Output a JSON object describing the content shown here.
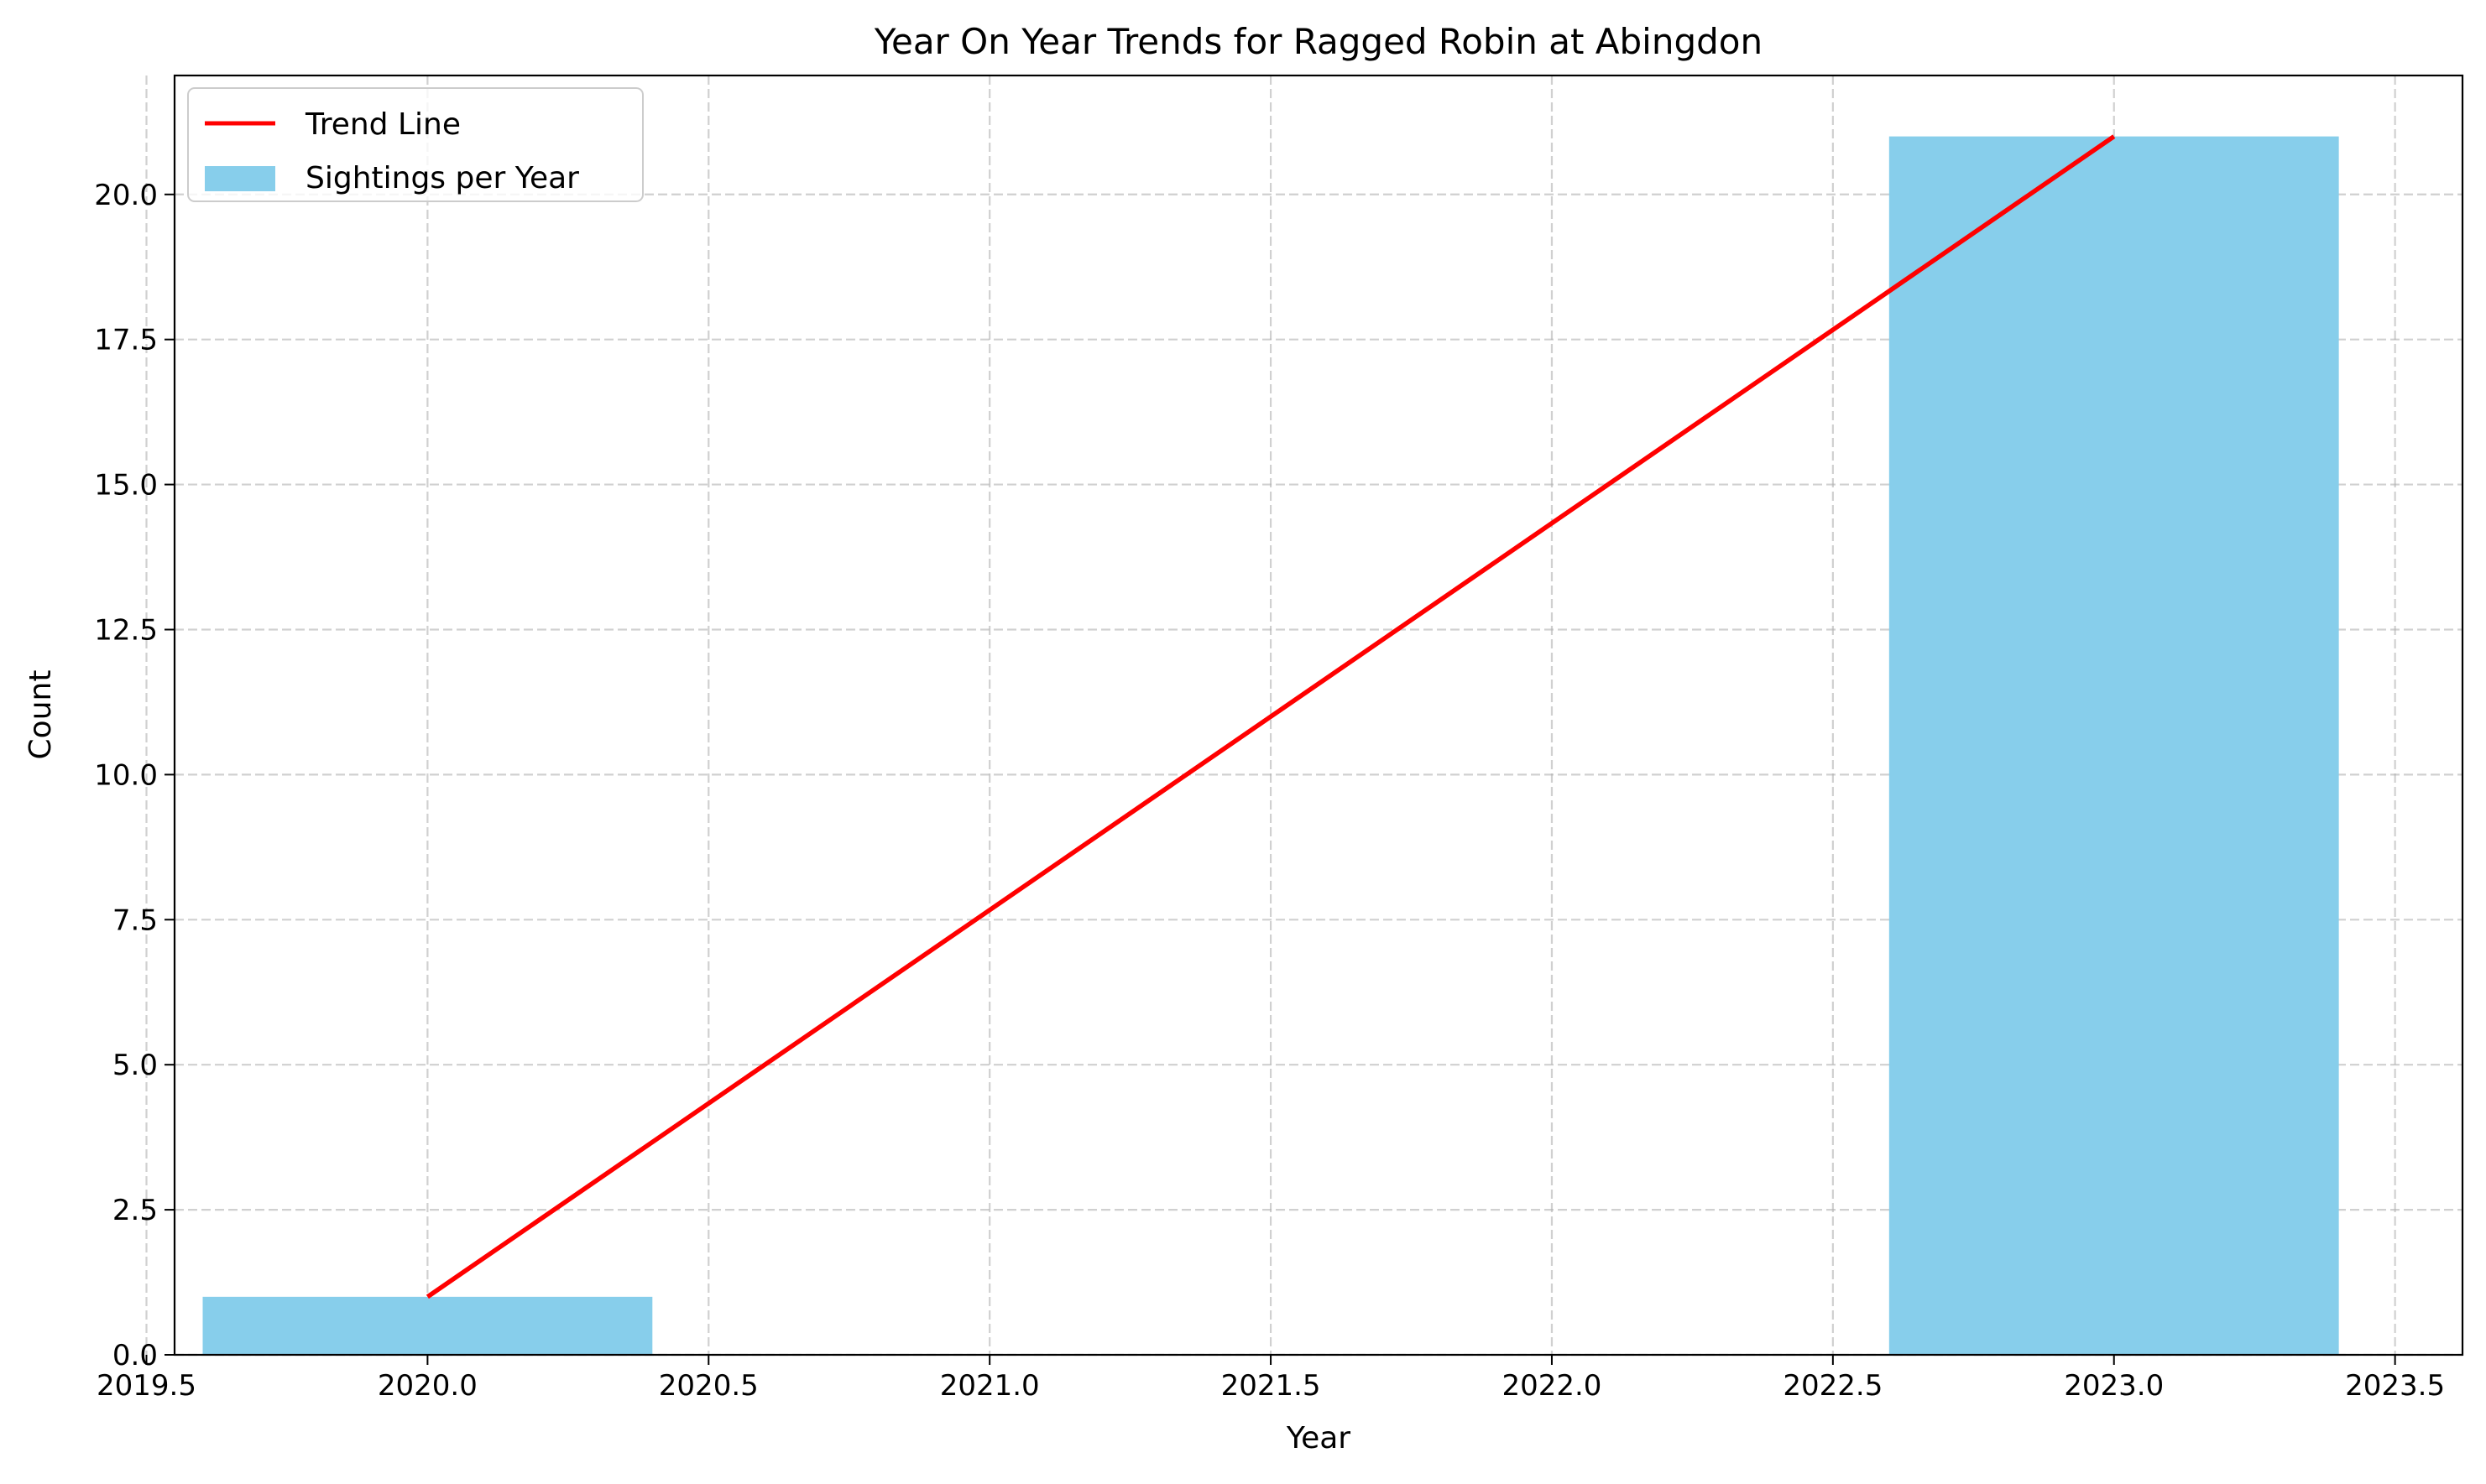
{
  "chart_data": {
    "type": "bar",
    "title": "Year On Year Trends for Ragged Robin at Abingdon",
    "xlabel": "Year",
    "ylabel": "Count",
    "xlim": [
      2019.55,
      2023.62
    ],
    "ylim": [
      0,
      22.05
    ],
    "x_ticks": [
      2019.5,
      2020.0,
      2020.5,
      2021.0,
      2021.5,
      2022.0,
      2022.5,
      2023.0,
      2023.5
    ],
    "x_tick_labels": [
      "2019.5",
      "2020.0",
      "2020.5",
      "2021.0",
      "2021.5",
      "2022.0",
      "2022.5",
      "2023.0",
      "2023.5"
    ],
    "y_ticks": [
      0,
      2.5,
      5,
      7.5,
      10,
      12.5,
      15,
      17.5,
      20
    ],
    "y_tick_labels": [
      "0.0",
      "2.5",
      "5.0",
      "7.5",
      "10.0",
      "12.5",
      "15.0",
      "17.5",
      "20.0"
    ],
    "grid": true,
    "legend_position": "top-left",
    "series": [
      {
        "name": "Sightings per Year",
        "kind": "bar",
        "color": "#87ceeb",
        "bar_width_years": 0.8,
        "x": [
          2020,
          2023
        ],
        "values": [
          1,
          21
        ]
      },
      {
        "name": "Trend Line",
        "kind": "line",
        "color": "#ff0000",
        "x": [
          2020,
          2023
        ],
        "values": [
          1,
          21
        ]
      }
    ]
  }
}
